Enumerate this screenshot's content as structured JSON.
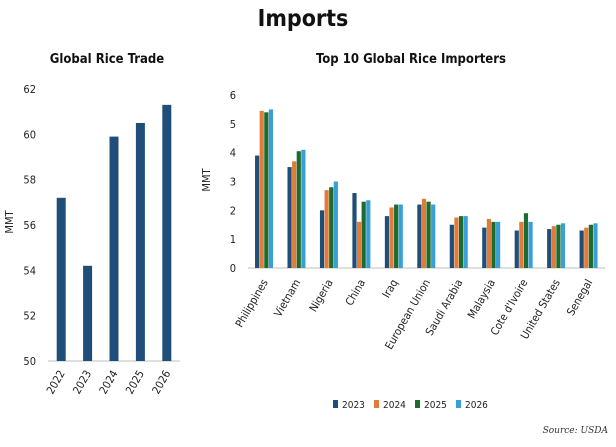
{
  "title": "Imports",
  "source": "Source: USDA",
  "colors": {
    "2023": "#1f4e79",
    "2024": "#e07b39",
    "2025": "#1e6b2f",
    "2026": "#3a9fd6",
    "axis": "#bfbfbf"
  },
  "chart_data": [
    {
      "type": "bar",
      "title": "Global Rice Trade",
      "ylabel": "MMT",
      "ylim": [
        50,
        62
      ],
      "yticks": [
        50,
        52,
        54,
        56,
        58,
        60,
        62
      ],
      "categories": [
        "2022",
        "2023",
        "2024",
        "2025",
        "2026"
      ],
      "values": [
        57.2,
        54.2,
        59.9,
        60.5,
        61.3
      ]
    },
    {
      "type": "bar",
      "title": "Top 10 Global Rice Importers",
      "ylabel": "MMT",
      "ylim": [
        0,
        6
      ],
      "yticks": [
        0,
        1,
        2,
        3,
        4,
        5,
        6
      ],
      "categories": [
        "Philippines",
        "Vietnam",
        "Nigeria",
        "China",
        "Iraq",
        "European Union",
        "Saudi Arabia",
        "Malaysia",
        "Cote d'Ivoire",
        "United States",
        "Senegal"
      ],
      "series": [
        {
          "name": "2023",
          "values": [
            3.9,
            3.5,
            2.0,
            2.6,
            1.8,
            2.2,
            1.5,
            1.4,
            1.3,
            1.35,
            1.3
          ]
        },
        {
          "name": "2024",
          "values": [
            5.45,
            3.7,
            2.7,
            1.6,
            2.1,
            2.4,
            1.75,
            1.7,
            1.6,
            1.45,
            1.4
          ]
        },
        {
          "name": "2025",
          "values": [
            5.4,
            4.05,
            2.8,
            2.3,
            2.2,
            2.3,
            1.8,
            1.6,
            1.9,
            1.5,
            1.5
          ]
        },
        {
          "name": "2026",
          "values": [
            5.5,
            4.1,
            3.0,
            2.35,
            2.2,
            2.2,
            1.8,
            1.6,
            1.6,
            1.55,
            1.55
          ]
        }
      ],
      "legend_position": "bottom"
    }
  ]
}
